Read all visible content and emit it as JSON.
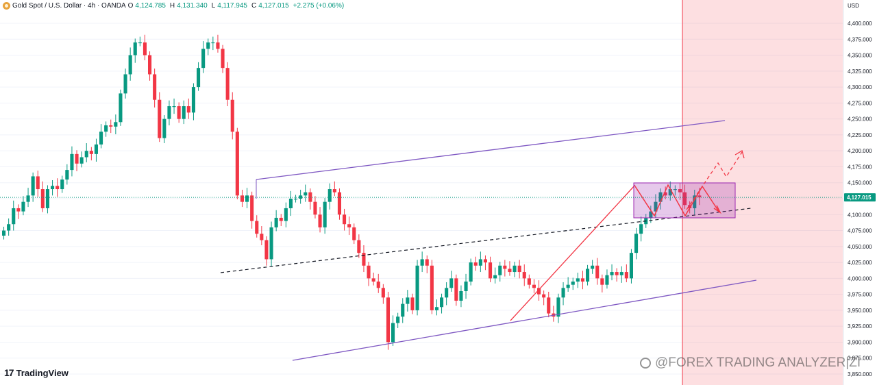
{
  "header": {
    "symbol": "Gold Spot / U.S. Dollar · 4h · OANDA",
    "open_label": "O",
    "open": "4,124.785",
    "high_label": "H",
    "high": "4,131.340",
    "low_label": "L",
    "low": "4,117.945",
    "close_label": "C",
    "close": "4,127.015",
    "change": "+2.275 (+0.06%)"
  },
  "axis": {
    "currency": "USD"
  },
  "branding": {
    "logo_text": "TradingView",
    "watermark": "@FOREX TRADING ANALYZER|ZI"
  },
  "colors": {
    "up": "#089981",
    "down": "#f23645",
    "channel": "#7e57c2",
    "arrow": "#f23645",
    "zone_fill": "rgba(242,54,69,0.16)",
    "box_fill": "rgba(156,39,176,0.25)",
    "price_label": "#089981"
  },
  "chart_data": {
    "type": "candlestick",
    "symbol": "Gold Spot / U.S. Dollar",
    "timeframe": "4h",
    "y_axis": {
      "ticks": [
        "4,400.000",
        "4,375.000",
        "4,350.000",
        "4,325.000",
        "4,300.000",
        "4,275.000",
        "4,250.000",
        "4,225.000",
        "4,200.000",
        "4,175.000",
        "4,150.000",
        "4,125.000",
        "4,100.000",
        "4,075.000",
        "4,050.000",
        "4,025.000",
        "4,000.000",
        "3,975.000",
        "3,950.000",
        "3,925.000",
        "3,900.000",
        "3,875.000",
        "3,850.000"
      ],
      "ylim": [
        3850,
        4410
      ]
    },
    "last_price": "4,127.015",
    "closes": [
      4075,
      4085,
      4110,
      4105,
      4120,
      4130,
      4160,
      4140,
      4110,
      4140,
      4145,
      4140,
      4155,
      4170,
      4195,
      4180,
      4190,
      4200,
      4195,
      4210,
      4230,
      4240,
      4238,
      4245,
      4290,
      4320,
      4350,
      4370,
      4370,
      4350,
      4320,
      4280,
      4220,
      4250,
      4270,
      4270,
      4250,
      4270,
      4260,
      4300,
      4330,
      4360,
      4370,
      4370,
      4360,
      4330,
      4280,
      4230,
      4130,
      4120,
      4130,
      4090,
      4070,
      4060,
      4030,
      4080,
      4095,
      4090,
      4110,
      4125,
      4125,
      4130,
      4135,
      4120,
      4100,
      4080,
      4120,
      4140,
      4135,
      4100,
      4085,
      4080,
      4060,
      4040,
      4020,
      4000,
      3995,
      3985,
      3970,
      3900,
      3930,
      3940,
      3960,
      3970,
      3950,
      4020,
      4030,
      4020,
      3950,
      3955,
      3970,
      3985,
      4000,
      3965,
      3980,
      3995,
      4025,
      4020,
      4030,
      4025,
      4000,
      4005,
      4020,
      4015,
      4010,
      4020,
      4010,
      4000,
      3990,
      3985,
      3975,
      3970,
      3945,
      3940,
      3970,
      3985,
      3990,
      3995,
      4000,
      3995,
      4015,
      4020,
      4000,
      3990,
      4005,
      4010,
      4005,
      4010,
      4000,
      4040,
      4070,
      4085,
      4095,
      4105,
      4120,
      4135,
      4130,
      4140,
      4140,
      4135,
      4115,
      4110,
      4130,
      4127.015
    ]
  },
  "annotations": {
    "upper_channel_line": {
      "from": [
        "bar 50",
        4155
      ],
      "to": [
        "bar 145",
        4248
      ]
    },
    "lower_channel_line": {
      "from": [
        "bar 58",
        3870
      ],
      "to": [
        "bar 150",
        3997
      ]
    },
    "dashed_trendline": {
      "from": [
        "bar 43",
        4010
      ],
      "to": [
        "bar 150",
        4110
      ]
    },
    "range_box": {
      "price_top": 4151,
      "price_bottom": 4097
    },
    "projection_zone": "shaded future area"
  }
}
